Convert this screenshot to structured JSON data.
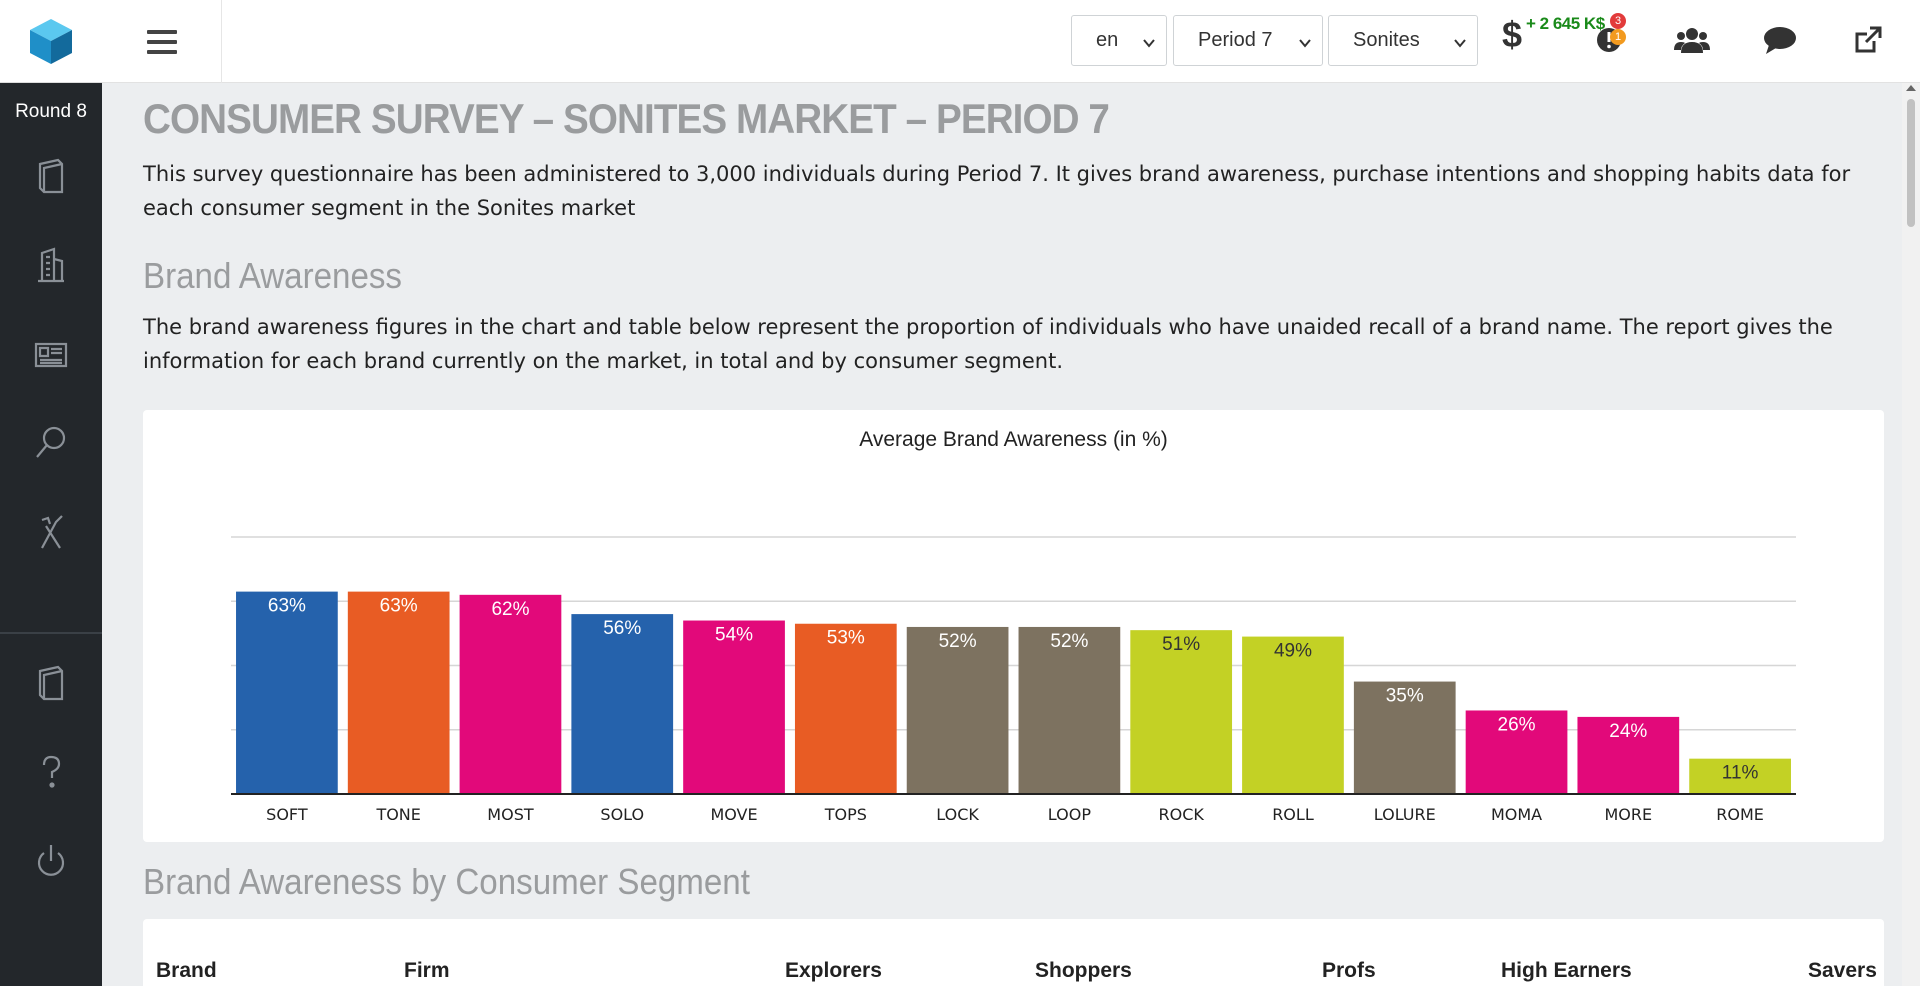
{
  "sidebar": {
    "logo": "cube-logo-icon",
    "round_label": "Round 8",
    "icons": [
      "book-icon",
      "building-icon",
      "newspaper-icon",
      "search-icon",
      "tools-icon"
    ],
    "bottom_icons": [
      "book-icon",
      "help-icon",
      "power-icon"
    ]
  },
  "topbar": {
    "language": "en",
    "period": "Period 7",
    "market": "Sonites",
    "money": "+ 2 645 K$",
    "currency_symbol": "$",
    "alert_badge_red": "3",
    "alert_badge_orange": "1"
  },
  "page": {
    "title": "CONSUMER SURVEY – SONITES MARKET – PERIOD 7",
    "intro": "This survey questionnaire has been administered to 3,000 individuals during Period 7. It gives brand awareness, purchase intentions and shopping habits data for each consumer segment in the Sonites market",
    "section1_title": "Brand Awareness",
    "section1_text": "The brand awareness figures in the chart and table below represent the proportion of individuals who have unaided recall of a brand name. The report gives the information for each brand currently on the market, in total and by consumer segment.",
    "section2_title": "Brand Awareness by Consumer Segment"
  },
  "table": {
    "headers": [
      "Brand",
      "Firm",
      "Explorers",
      "Shoppers",
      "Profs",
      "High Earners",
      "Savers"
    ]
  },
  "chart_data": {
    "type": "bar",
    "title": "Average Brand Awareness (in %)",
    "categories": [
      "SOFT",
      "TONE",
      "MOST",
      "SOLO",
      "MOVE",
      "TOPS",
      "LOCK",
      "LOOP",
      "ROCK",
      "ROLL",
      "LOLURE",
      "MOMA",
      "MORE",
      "ROME"
    ],
    "values": [
      63,
      63,
      62,
      56,
      54,
      53,
      52,
      52,
      51,
      49,
      35,
      26,
      24,
      11
    ],
    "data_labels": [
      "63%",
      "63%",
      "62%",
      "56%",
      "54%",
      "53%",
      "52%",
      "52%",
      "51%",
      "49%",
      "35%",
      "26%",
      "24%",
      "11%"
    ],
    "colors": [
      "#2562ac",
      "#e85c24",
      "#e2097a",
      "#2562ac",
      "#e2097a",
      "#e85c24",
      "#7d7260",
      "#7d7260",
      "#c3d125",
      "#c3d125",
      "#7d7260",
      "#e2097a",
      "#e2097a",
      "#c3d125"
    ],
    "label_colors": [
      "#ffffff",
      "#ffffff",
      "#ffffff",
      "#ffffff",
      "#ffffff",
      "#ffffff",
      "#ffffff",
      "#ffffff",
      "#333333",
      "#333333",
      "#ffffff",
      "#ffffff",
      "#ffffff",
      "#333333"
    ],
    "ylim": [
      0,
      80
    ],
    "grid": true
  }
}
